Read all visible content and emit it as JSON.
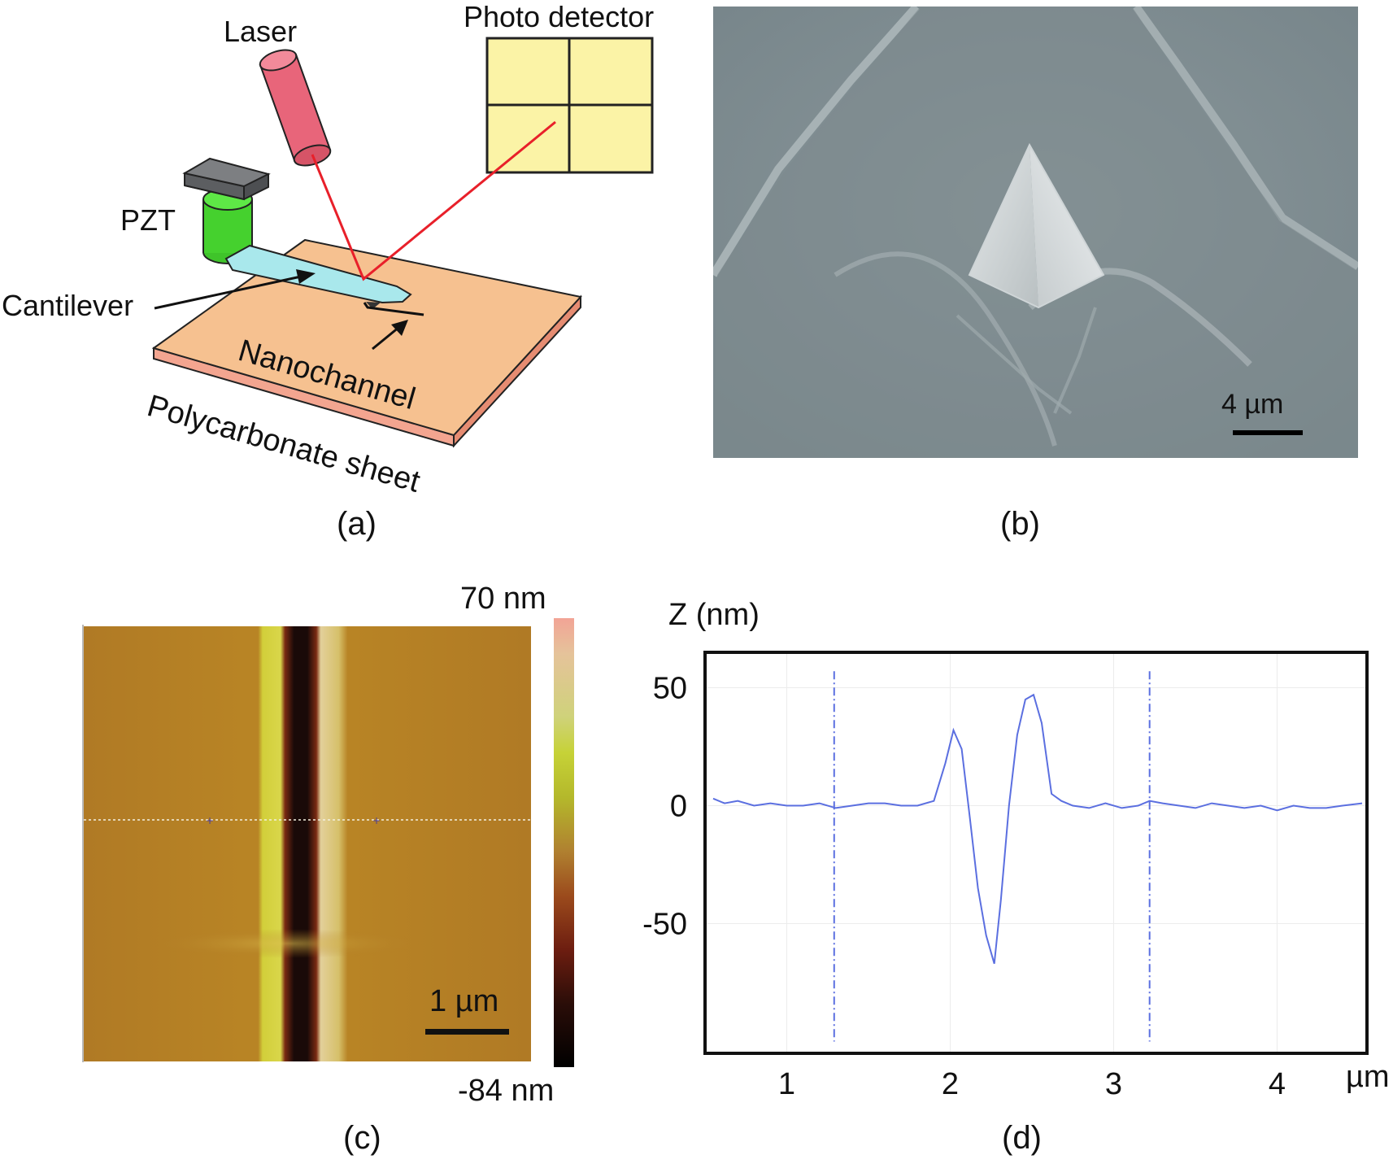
{
  "panel_a": {
    "caption": "(a)",
    "labels": {
      "laser": "Laser",
      "photo_detector": "Photo detector",
      "pzt": "PZT",
      "cantilever": "Cantilever",
      "nanochannel": "Nanochannel",
      "sheet": "Polycarbonate sheet"
    },
    "colors": {
      "laser_body": "#e8657a",
      "detector": "#fbf3a6",
      "beam": "#e8202a",
      "pzt_cap": "#6d6f72",
      "pzt_body": "#45d12e",
      "cantilever": "#a9e8ec",
      "sheet_top": "#f6c190",
      "sheet_edge": "#f3a590"
    }
  },
  "panel_b": {
    "caption": "(b)",
    "scale_bar": "4 µm",
    "colors": {
      "background": "#7f8c90",
      "tip": "#d6dadb"
    }
  },
  "panel_c": {
    "caption": "(c)",
    "scale_bar": "1 µm",
    "colorbar_max": "70 nm",
    "colorbar_min": "-84 nm",
    "colors": {
      "surface": "#b07a25",
      "ridge": "#d2cf3a",
      "groove": "#1a0a08"
    }
  },
  "panel_d": {
    "caption": "(d)",
    "chart_data": {
      "type": "line",
      "ylabel": "Z (nm)",
      "xlabel": "µm",
      "x_ticks": [
        "1",
        "2",
        "3",
        "4"
      ],
      "y_ticks": [
        "50",
        "0",
        "-50"
      ],
      "xlim": [
        0.5,
        4.55
      ],
      "ylim": [
        -105,
        65
      ],
      "cursor_lines_x": [
        1.29,
        3.22
      ],
      "series": [
        {
          "color": "#5b6fe0",
          "x": [
            0.55,
            0.62,
            0.7,
            0.8,
            0.9,
            1.0,
            1.1,
            1.2,
            1.3,
            1.4,
            1.5,
            1.6,
            1.7,
            1.8,
            1.9,
            1.97,
            2.02,
            2.07,
            2.12,
            2.17,
            2.22,
            2.27,
            2.31,
            2.36,
            2.41,
            2.46,
            2.51,
            2.56,
            2.62,
            2.68,
            2.75,
            2.85,
            2.95,
            3.05,
            3.15,
            3.22,
            3.3,
            3.4,
            3.5,
            3.6,
            3.7,
            3.8,
            3.9,
            4.0,
            4.1,
            4.2,
            4.3,
            4.4,
            4.52
          ],
          "y": [
            3,
            1,
            2,
            0,
            1,
            0,
            0,
            1,
            -1,
            0,
            1,
            1,
            0,
            0,
            2,
            18,
            32,
            24,
            -5,
            -35,
            -55,
            -67,
            -40,
            0,
            30,
            45,
            47,
            35,
            5,
            2,
            0,
            -1,
            1,
            -1,
            0,
            2,
            1,
            0,
            -1,
            1,
            0,
            -1,
            0,
            -2,
            0,
            -1,
            -1,
            0,
            1
          ]
        }
      ]
    }
  }
}
